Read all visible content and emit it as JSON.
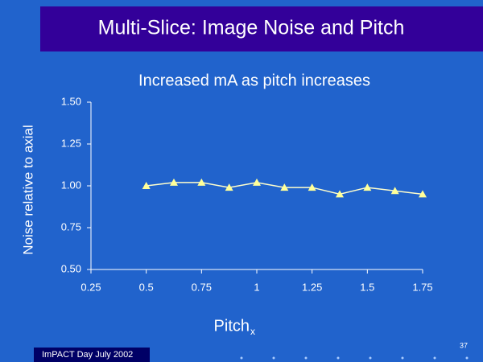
{
  "slide": {
    "title": "Multi-Slice: Image Noise and Pitch",
    "footer": "ImPACT Day July 2002",
    "page_number": "37"
  },
  "chart_data": {
    "type": "line",
    "title": "Increased mA as pitch increases",
    "x_label": "Pitch",
    "x_label_subscript": "x",
    "y_label": "Noise relative to axial",
    "x": [
      0.5,
      0.625,
      0.75,
      0.875,
      1.0,
      1.125,
      1.25,
      1.375,
      1.5,
      1.625,
      1.75
    ],
    "values": [
      1.0,
      1.02,
      1.02,
      0.99,
      1.02,
      0.99,
      0.99,
      0.95,
      0.99,
      0.97,
      0.95
    ],
    "color": "#ffffcc",
    "marker_color": "#ffff99",
    "xlim": [
      0.25,
      1.75
    ],
    "xticks": [
      0.25,
      0.5,
      0.75,
      1,
      1.25,
      1.5,
      1.75
    ],
    "ylim": [
      0.5,
      1.5
    ],
    "yticks": [
      {
        "value": 0.5,
        "label": "0.50"
      },
      0.75,
      {
        "value": 1.0,
        "label": "1.00"
      },
      1.25,
      {
        "value": 1.5,
        "label": "1.50"
      }
    ]
  }
}
